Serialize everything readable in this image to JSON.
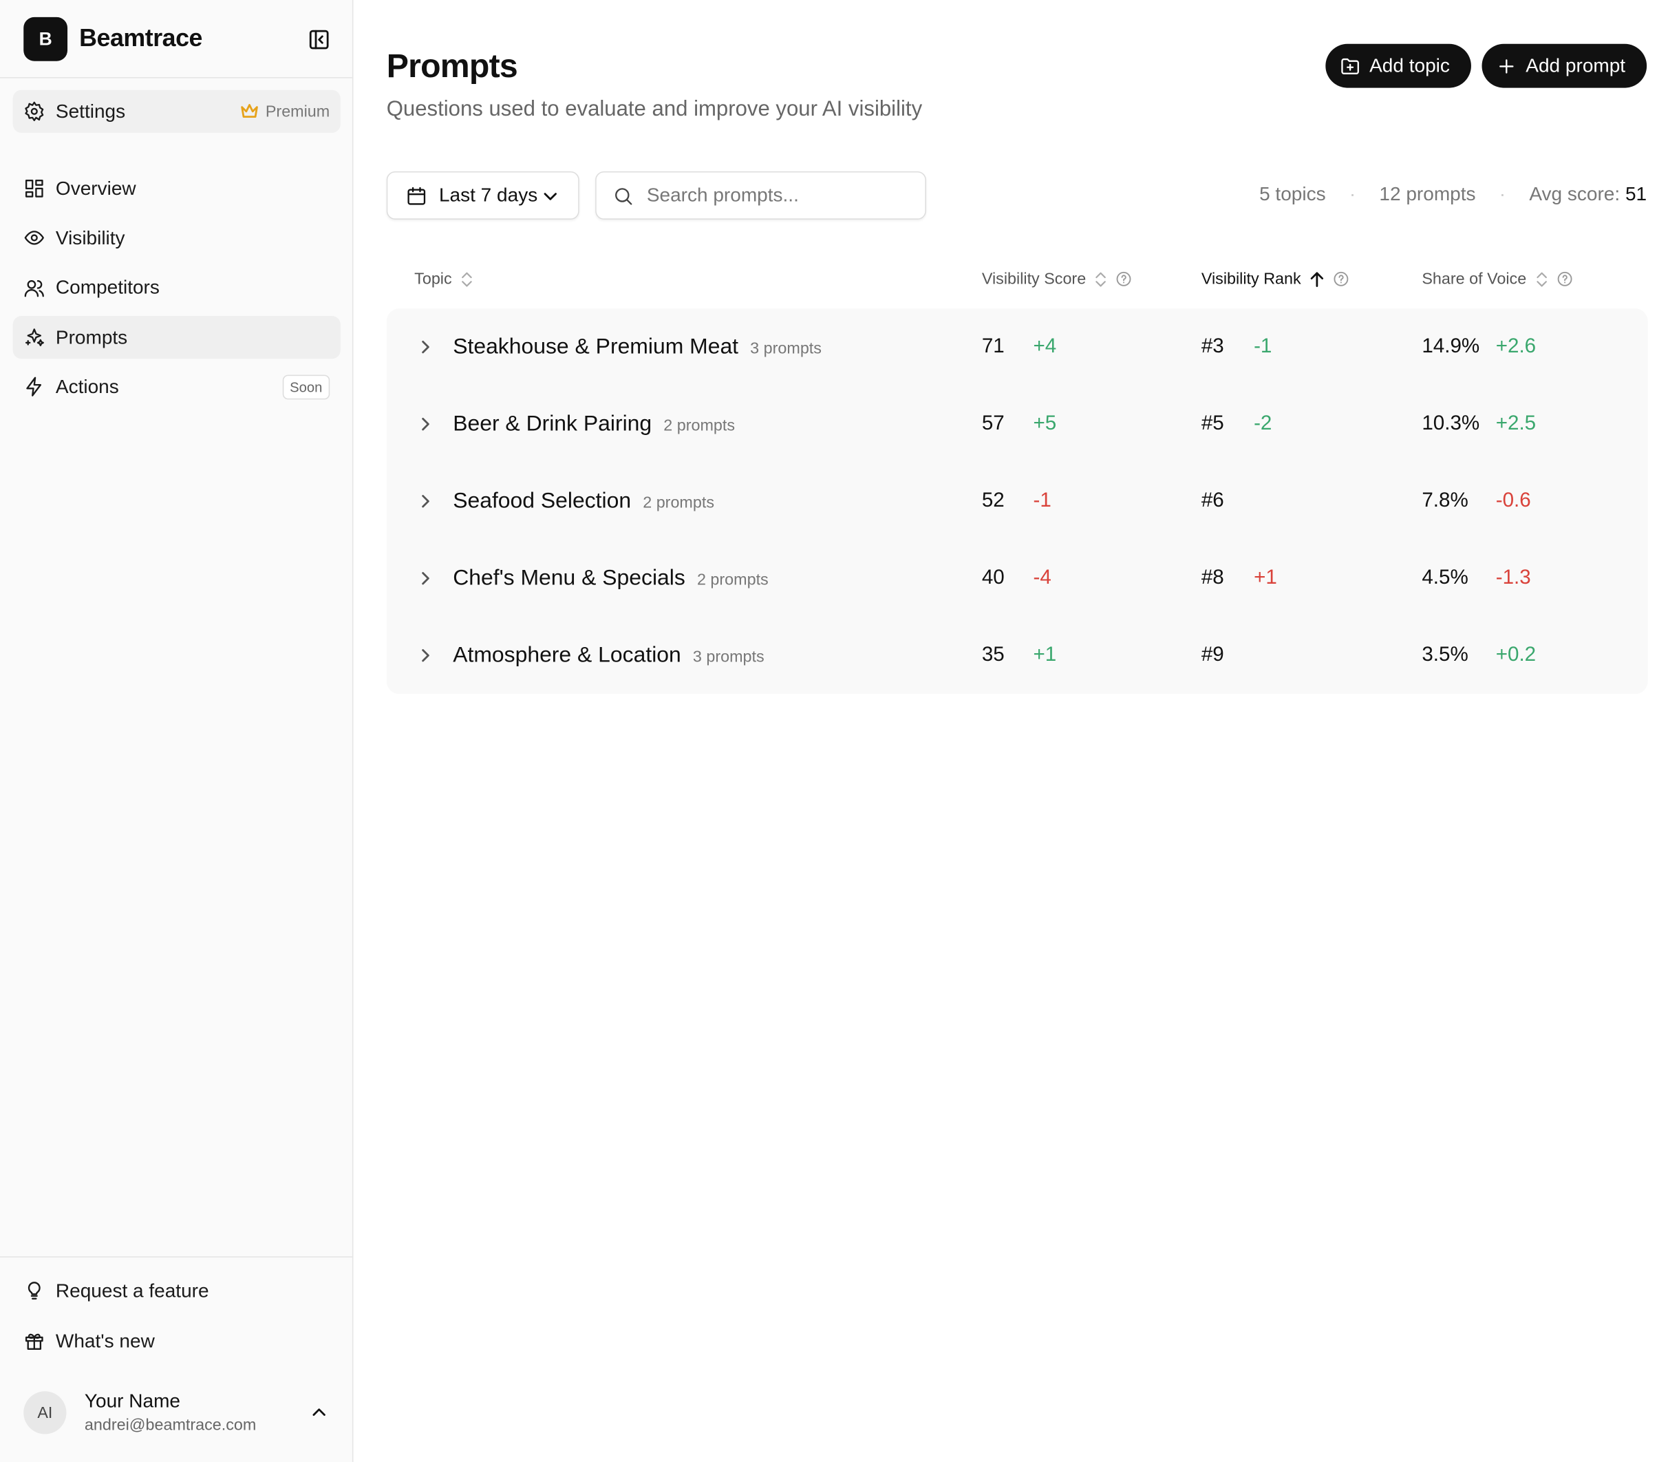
{
  "sidebar": {
    "logo_letter": "B",
    "brand": "Beamtrace",
    "settings": "Settings",
    "plan": "Premium",
    "nav": [
      {
        "label": "Overview"
      },
      {
        "label": "Visibility"
      },
      {
        "label": "Competitors"
      },
      {
        "label": "Prompts"
      },
      {
        "label": "Actions",
        "badge": "Soon"
      }
    ],
    "footer": [
      "Request a feature",
      "What's new"
    ],
    "user": {
      "initials": "AI",
      "name": "Your Name",
      "email": "andrei@beamtrace.com"
    }
  },
  "header": {
    "title": "Prompts",
    "subtitle": "Questions used to evaluate and improve your AI visibility",
    "buttons": [
      "Add topic",
      "Add prompt"
    ]
  },
  "toolbar": {
    "date_range": "Last 7 days",
    "search_placeholder": "Search prompts...",
    "stats": [
      "5 topics",
      "12 prompts"
    ],
    "avg_label": "Avg score:",
    "avg_value": "51"
  },
  "table": {
    "columns": [
      "Topic",
      "Visibility Score",
      "Visibility Rank",
      "Share of Voice"
    ],
    "rows": [
      {
        "topic": "Steakhouse & Premium Meat",
        "count": "3 prompts",
        "score": "71",
        "score_delta": "+4",
        "rank": "#3",
        "rank_delta": "-1",
        "sov": "14.9%",
        "sov_delta": "+2.6"
      },
      {
        "topic": "Beer & Drink Pairing",
        "count": "2 prompts",
        "score": "57",
        "score_delta": "+5",
        "rank": "#5",
        "rank_delta": "-2",
        "sov": "10.3%",
        "sov_delta": "+2.5"
      },
      {
        "topic": "Seafood Selection",
        "count": "2 prompts",
        "score": "52",
        "score_delta": "-1",
        "rank": "#6",
        "sov": "7.8%",
        "sov_delta": "-0.6"
      },
      {
        "topic": "Chef's Menu & Specials",
        "count": "2 prompts",
        "score": "40",
        "score_delta": "-4",
        "rank": "#8",
        "rank_delta": "+1",
        "sov": "4.5%",
        "sov_delta": "-1.3"
      },
      {
        "topic": "Atmosphere & Location",
        "count": "3 prompts",
        "score": "35",
        "score_delta": "+1",
        "rank": "#9",
        "sov": "3.5%",
        "sov_delta": "+0.2"
      }
    ]
  }
}
